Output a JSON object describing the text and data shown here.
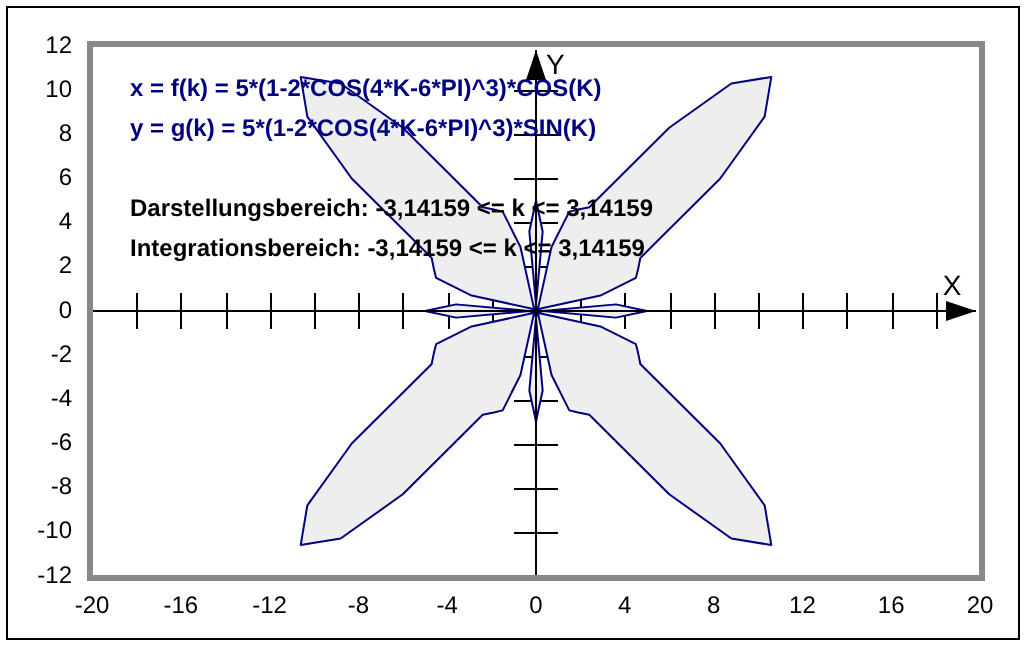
{
  "chart_data": {
    "type": "area",
    "xlabel": "X",
    "ylabel": "Y",
    "annotations": [
      "x = f(k) = 5*(1-2*COS(4*K-6*PI)^3)*COS(K)",
      "y = g(k) = 5*(1-2*COS(4*K-6*PI)^3)*SIN(K)",
      "Darstellungsbereich: -3,14159 <= k <= 3,14159",
      "Integrationsbereich: -3,14159 <= k <= 3,14159"
    ],
    "series": [
      {
        "color": "#000080",
        "x": [
          -5,
          -3.6,
          -0.3,
          2.9,
          4.5,
          4.6,
          4.7,
          6,
          8.3,
          10.3,
          10.6,
          8.8,
          6,
          3.7,
          2.4,
          1.9,
          1.5,
          0.7,
          0,
          -0.3,
          0,
          0.3,
          0,
          -0.7,
          -1.5,
          -1.9,
          -2.4,
          -3.7,
          -6,
          -8.8,
          -10.6,
          -10.3,
          -8.3,
          -6,
          -4.7,
          -4.6,
          -4.5,
          -2.9,
          0.3,
          3.6,
          5,
          3.6,
          0.3,
          -2.9,
          -4.5,
          -4.6,
          -4.7,
          -6,
          -8.3,
          -10.3,
          -10.6,
          -8.8,
          -6,
          -3.7,
          -2.4,
          -1.9,
          -1.5,
          -0.7,
          0,
          0.3,
          0,
          -0.3,
          0,
          0.7,
          1.5,
          1.9,
          2.4,
          3.7,
          6,
          8.8,
          10.6,
          10.3,
          8.3,
          6,
          4.7,
          4.6,
          4.5,
          2.9,
          -0.3,
          -3.6,
          -5
        ],
        "values": [
          0,
          -0.3,
          0,
          0.7,
          1.5,
          1.9,
          2.4,
          3.7,
          6,
          8.8,
          10.6,
          10.3,
          8.3,
          6,
          4.7,
          4.6,
          4.5,
          2.9,
          -0.3,
          -3.6,
          -5,
          -3.6,
          -0.3,
          2.9,
          4.5,
          4.6,
          4.7,
          6,
          8.3,
          10.3,
          10.6,
          8.8,
          6,
          3.7,
          2.4,
          1.9,
          1.5,
          0.7,
          0,
          -0.3,
          0,
          0.3,
          0,
          -0.7,
          -1.5,
          -1.9,
          -2.4,
          -3.7,
          -6,
          -8.8,
          -10.6,
          -10.3,
          -8.3,
          -6,
          -4.7,
          -4.6,
          -4.5,
          -2.9,
          0.3,
          3.6,
          5,
          3.6,
          0.3,
          -2.9,
          -4.5,
          -4.6,
          -4.7,
          -6,
          -8.3,
          -10.3,
          -10.6,
          -8.8,
          -6,
          -3.7,
          -2.4,
          -1.9,
          -1.5,
          -0.7,
          0,
          0.3,
          0
        ]
      }
    ],
    "xlim": [
      -20,
      20
    ],
    "xticks": [
      -20,
      -16,
      -12,
      -8,
      -4,
      0,
      4,
      8,
      12,
      16,
      20
    ],
    "ylim": [
      -12,
      12
    ],
    "yticks": [
      -12,
      -10,
      -8,
      -6,
      -4,
      -2,
      0,
      2,
      4,
      6,
      8,
      10,
      12
    ],
    "marker": "none",
    "line_style": "solid",
    "legend": false
  }
}
